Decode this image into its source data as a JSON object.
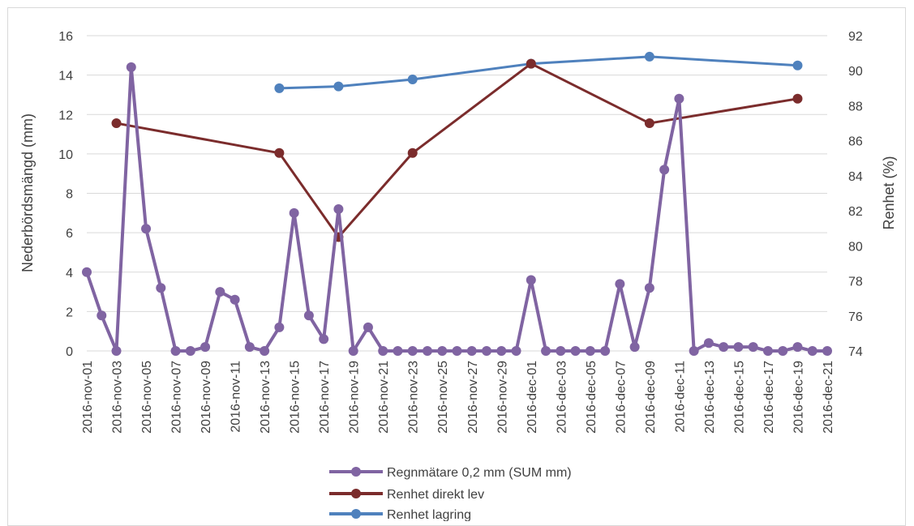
{
  "chart_data": {
    "type": "line",
    "title": "",
    "ylabel": "Nederbördsmängd (mm)",
    "y2label": "Renhet (%)",
    "ylim": [
      0,
      16
    ],
    "y_ticks": [
      0,
      2,
      4,
      6,
      8,
      10,
      12,
      14,
      16
    ],
    "y2lim": [
      74,
      92
    ],
    "y2_ticks": [
      74,
      76,
      78,
      80,
      82,
      84,
      86,
      88,
      90,
      92
    ],
    "xlim": [
      "2016-11-01",
      "2016-12-21"
    ],
    "x_tick_labels": [
      "2016-nov-01",
      "2016-nov-03",
      "2016-nov-05",
      "2016-nov-07",
      "2016-nov-09",
      "2016-nov-11",
      "2016-nov-13",
      "2016-nov-15",
      "2016-nov-17",
      "2016-nov-19",
      "2016-nov-21",
      "2016-nov-23",
      "2016-nov-25",
      "2016-nov-27",
      "2016-nov-29",
      "2016-dec-01",
      "2016-dec-03",
      "2016-dec-05",
      "2016-dec-07",
      "2016-dec-09",
      "2016-dec-11",
      "2016-dec-13",
      "2016-dec-15",
      "2016-dec-17",
      "2016-dec-19",
      "2016-dec-21"
    ],
    "grid": true,
    "legend_position": "bottom",
    "series": [
      {
        "name": "Regnmätare 0,2 mm (SUM mm)",
        "axis": "left",
        "color": "#8064a2",
        "x": [
          "2016-11-01",
          "2016-11-02",
          "2016-11-03",
          "2016-11-04",
          "2016-11-05",
          "2016-11-06",
          "2016-11-07",
          "2016-11-08",
          "2016-11-09",
          "2016-11-10",
          "2016-11-11",
          "2016-11-12",
          "2016-11-13",
          "2016-11-14",
          "2016-11-15",
          "2016-11-16",
          "2016-11-17",
          "2016-11-18",
          "2016-11-19",
          "2016-11-20",
          "2016-11-21",
          "2016-11-22",
          "2016-11-23",
          "2016-11-24",
          "2016-11-25",
          "2016-11-26",
          "2016-11-27",
          "2016-11-28",
          "2016-11-29",
          "2016-11-30",
          "2016-12-01",
          "2016-12-02",
          "2016-12-03",
          "2016-12-04",
          "2016-12-05",
          "2016-12-06",
          "2016-12-07",
          "2016-12-08",
          "2016-12-09",
          "2016-12-10",
          "2016-12-11",
          "2016-12-12",
          "2016-12-13",
          "2016-12-14",
          "2016-12-15",
          "2016-12-16",
          "2016-12-17",
          "2016-12-18",
          "2016-12-19",
          "2016-12-20",
          "2016-12-21"
        ],
        "values": [
          4,
          1.8,
          0,
          14.4,
          6.2,
          3.2,
          0,
          0,
          0.2,
          3,
          2.6,
          0.2,
          0,
          1.2,
          7,
          1.8,
          0.6,
          7.2,
          0,
          1.2,
          0,
          0,
          0,
          0,
          0,
          0,
          0,
          0,
          0,
          0,
          3.6,
          0,
          0,
          0,
          0,
          0,
          3.4,
          0.2,
          3.2,
          9.2,
          12.8,
          0,
          0.4,
          0.2,
          0.2,
          0.2,
          0,
          0,
          0.2,
          0,
          0
        ]
      },
      {
        "name": "Renhet direkt lev",
        "axis": "right",
        "color": "#7b2c2c",
        "x": [
          "2016-11-03",
          "2016-11-14",
          "2016-11-18",
          "2016-11-23",
          "2016-12-01",
          "2016-12-09",
          "2016-12-19"
        ],
        "values": [
          87,
          85.3,
          80.5,
          85.3,
          90.4,
          87,
          88.4
        ]
      },
      {
        "name": "Renhet lagring",
        "axis": "right",
        "color": "#4f81bd",
        "x": [
          "2016-11-14",
          "2016-11-18",
          "2016-11-23",
          "2016-12-01",
          "2016-12-09",
          "2016-12-19"
        ],
        "values": [
          89,
          89.1,
          89.5,
          90.4,
          90.8,
          90.3
        ]
      }
    ]
  }
}
